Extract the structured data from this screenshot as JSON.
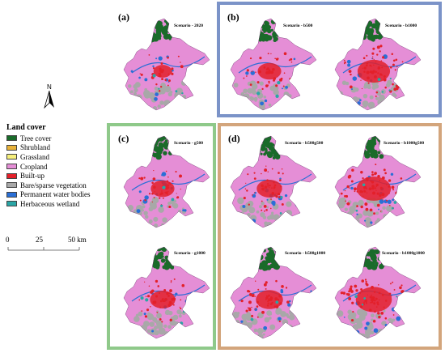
{
  "legend": {
    "title": "Land cover",
    "items": [
      {
        "label": "Tree cover",
        "color": "#1a6b2a"
      },
      {
        "label": "Shrubland",
        "color": "#e8b23a"
      },
      {
        "label": "Grassland",
        "color": "#f6ef7c"
      },
      {
        "label": "Cropland",
        "color": "#e58ed6"
      },
      {
        "label": "Built-up",
        "color": "#e3202a"
      },
      {
        "label": "Bare/sparse vegetation",
        "color": "#a8a8a8"
      },
      {
        "label": "Permanent water bodies",
        "color": "#2a6fd6"
      },
      {
        "label": "Herbaceous wetland",
        "color": "#2aa6a6"
      }
    ]
  },
  "north_arrow": {
    "label": "N",
    "icon": "north-arrow-icon"
  },
  "scale_bar": {
    "ticks": [
      "0",
      "25",
      "50 km"
    ]
  },
  "frames": {
    "b_color": "#7b93c8",
    "c_color": "#8fc98a",
    "d_color": "#d3a57c"
  },
  "panels": {
    "a": {
      "letter": "(a)",
      "maps": [
        {
          "scenario": "Scenario - 2020",
          "built": 0.15
        }
      ]
    },
    "b": {
      "letter": "(b)",
      "maps": [
        {
          "scenario": "Scenario - b500",
          "built": 0.3
        },
        {
          "scenario": "Scenario - b1000",
          "built": 0.55
        }
      ]
    },
    "c": {
      "letter": "(c)",
      "maps": [
        {
          "scenario": "Scenario - g500",
          "built": 0.3
        },
        {
          "scenario": "Scenario - g1000",
          "built": 0.35
        }
      ]
    },
    "d": {
      "letter": "(d)",
      "maps": [
        {
          "scenario": "Scenario - b500g500",
          "built": 0.35
        },
        {
          "scenario": "Scenario - b1000g500",
          "built": 0.6
        },
        {
          "scenario": "Scenario - b500g1000",
          "built": 0.4
        },
        {
          "scenario": "Scenario - b1000g1000",
          "built": 0.65
        }
      ]
    }
  }
}
